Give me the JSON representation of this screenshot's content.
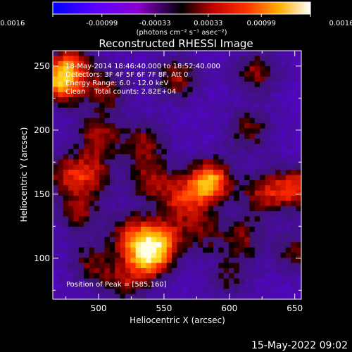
{
  "chart_data": {
    "type": "heatmap",
    "title": "Reconstructed RHESSI Image",
    "xlabel": "Heliocentric X (arcsec)",
    "ylabel": "Heliocentric Y (arcsec)",
    "xlim": [
      465,
      655
    ],
    "ylim": [
      68,
      262
    ],
    "xticks": [
      500,
      550,
      600,
      650
    ],
    "yticks": [
      100,
      150,
      200,
      250
    ],
    "colorbar": {
      "ticks": [
        "-0.0016",
        "-0.00099",
        "-0.00033",
        "0.00033",
        "0.00099",
        "0.0016"
      ],
      "range": [
        -0.0016,
        0.0016
      ],
      "units_label": "(photons cm⁻² s⁻¹ asec⁻²)"
    },
    "annotations": [
      "18-May-2014 18:46:40.000 to 18:52:40.000",
      "Detectors: 3F 4F 5F 6F 7F 8F, Att 0",
      "Energy Range: 6.0 - 12.0 keV",
      "Clean    Total counts: 2.82E+04"
    ],
    "peak_label": "Position of Peak = [585,160]",
    "sources": [
      {
        "x": 585,
        "y": 160,
        "level": 1.0
      },
      {
        "x": 538,
        "y": 100,
        "level": 0.9
      },
      {
        "x": 548,
        "y": 115,
        "level": 0.7
      },
      {
        "x": 525,
        "y": 118,
        "level": 0.6
      },
      {
        "x": 470,
        "y": 236,
        "level": 0.8
      },
      {
        "x": 478,
        "y": 250,
        "level": 0.65
      },
      {
        "x": 505,
        "y": 230,
        "level": 0.5
      },
      {
        "x": 560,
        "y": 240,
        "level": 0.55
      },
      {
        "x": 620,
        "y": 245,
        "level": 0.5
      },
      {
        "x": 500,
        "y": 195,
        "level": 0.55
      },
      {
        "x": 535,
        "y": 190,
        "level": 0.5
      },
      {
        "x": 615,
        "y": 200,
        "level": 0.45
      },
      {
        "x": 495,
        "y": 165,
        "level": 0.5
      },
      {
        "x": 540,
        "y": 160,
        "level": 0.55
      },
      {
        "x": 565,
        "y": 145,
        "level": 0.6
      },
      {
        "x": 650,
        "y": 155,
        "level": 0.7
      },
      {
        "x": 625,
        "y": 150,
        "level": 0.55
      },
      {
        "x": 475,
        "y": 165,
        "level": 0.5
      },
      {
        "x": 485,
        "y": 135,
        "level": 0.5
      },
      {
        "x": 610,
        "y": 115,
        "level": 0.45
      },
      {
        "x": 580,
        "y": 120,
        "level": 0.4
      },
      {
        "x": 495,
        "y": 95,
        "level": 0.45
      },
      {
        "x": 650,
        "y": 105,
        "level": 0.4
      },
      {
        "x": 600,
        "y": 85,
        "level": 0.35
      },
      {
        "x": 520,
        "y": 80,
        "level": 0.45
      }
    ],
    "grid": false
  },
  "footer": {
    "timestamp": "15-May-2022 09:02"
  }
}
